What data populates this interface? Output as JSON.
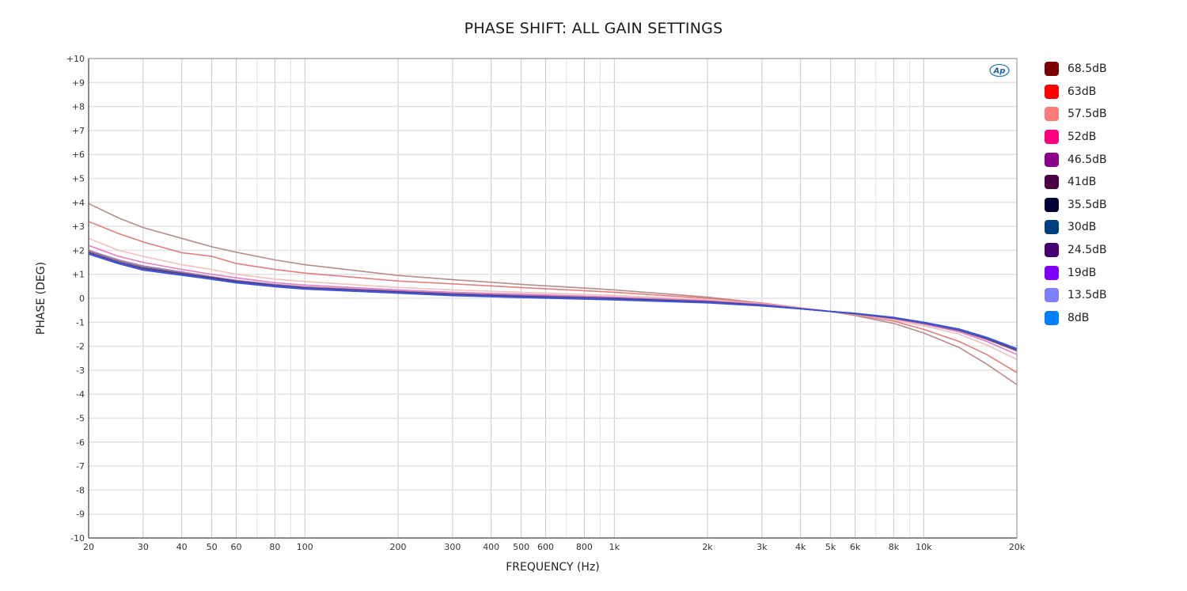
{
  "chart": {
    "title": "PHASE SHIFT: ALL GAIN SETTINGS",
    "xlabel": "FREQUENCY (Hz)",
    "ylabel": "PHASE (DEG)",
    "logo_text": "Ap"
  },
  "chart_data": {
    "type": "line",
    "title": "PHASE SHIFT: ALL GAIN SETTINGS",
    "xlabel": "FREQUENCY (Hz)",
    "ylabel": "PHASE (DEG)",
    "xscale": "log",
    "xlim": [
      20,
      20000
    ],
    "ylim": [
      -10,
      10
    ],
    "grid": true,
    "legend_position": "right",
    "x_ticks": [
      20,
      30,
      40,
      50,
      60,
      80,
      100,
      200,
      300,
      400,
      500,
      600,
      800,
      1000,
      2000,
      3000,
      4000,
      5000,
      6000,
      8000,
      10000,
      20000
    ],
    "x_tick_labels": [
      "20",
      "30",
      "40",
      "50",
      "60",
      "80",
      "100",
      "200",
      "300",
      "400",
      "500",
      "600",
      "800",
      "1k",
      "2k",
      "3k",
      "4k",
      "5k",
      "6k",
      "8k",
      "10k",
      "20k"
    ],
    "y_ticks": [
      10,
      9,
      8,
      7,
      6,
      5,
      4,
      3,
      2,
      1,
      0,
      -1,
      -2,
      -3,
      -4,
      -5,
      -6,
      -7,
      -8,
      -9,
      -10
    ],
    "y_tick_labels": [
      "+10",
      "+9",
      "+8",
      "+7",
      "+6",
      "+5",
      "+4",
      "+3",
      "+2",
      "+1",
      "0",
      "-1",
      "-2",
      "-3",
      "-4",
      "-5",
      "-6",
      "-7",
      "-8",
      "-9",
      "-10"
    ],
    "x": [
      20,
      25,
      30,
      40,
      50,
      60,
      80,
      100,
      200,
      300,
      500,
      1000,
      2000,
      3000,
      4000,
      5000,
      6000,
      8000,
      10000,
      13000,
      16000,
      20000
    ],
    "series": [
      {
        "name": "68.5dB",
        "color": "#7a0000",
        "line_color": "#b08080",
        "values": [
          3.95,
          3.35,
          2.95,
          2.5,
          2.15,
          1.92,
          1.6,
          1.4,
          0.95,
          0.78,
          0.58,
          0.35,
          0.05,
          -0.2,
          -0.4,
          -0.55,
          -0.72,
          -1.05,
          -1.45,
          -2.05,
          -2.75,
          -3.6
        ]
      },
      {
        "name": "63dB",
        "color": "#ff0000",
        "line_color": "#e07070",
        "values": [
          3.2,
          2.7,
          2.35,
          1.9,
          1.75,
          1.45,
          1.2,
          1.05,
          0.72,
          0.6,
          0.45,
          0.25,
          0.0,
          -0.2,
          -0.4,
          -0.55,
          -0.7,
          -0.95,
          -1.3,
          -1.8,
          -2.35,
          -3.1
        ]
      },
      {
        "name": "57.5dB",
        "color": "#ff7b7b",
        "line_color": "#f2b8b8",
        "values": [
          2.5,
          2.0,
          1.75,
          1.4,
          1.2,
          1.0,
          0.8,
          0.7,
          0.45,
          0.35,
          0.25,
          0.12,
          -0.05,
          -0.22,
          -0.4,
          -0.55,
          -0.68,
          -0.9,
          -1.15,
          -1.5,
          -1.95,
          -2.55
        ]
      },
      {
        "name": "52dB",
        "color": "#ff007f",
        "line_color": "#e070c0",
        "values": [
          2.2,
          1.75,
          1.5,
          1.2,
          1.0,
          0.85,
          0.65,
          0.55,
          0.35,
          0.25,
          0.17,
          0.05,
          -0.1,
          -0.25,
          -0.42,
          -0.55,
          -0.66,
          -0.85,
          -1.08,
          -1.4,
          -1.8,
          -2.35
        ]
      },
      {
        "name": "46.5dB",
        "color": "#8b008b",
        "line_color": "#a070b0",
        "values": [
          2.0,
          1.6,
          1.35,
          1.1,
          0.9,
          0.75,
          0.58,
          0.48,
          0.3,
          0.2,
          0.12,
          0.02,
          -0.13,
          -0.27,
          -0.43,
          -0.55,
          -0.65,
          -0.84,
          -1.05,
          -1.35,
          -1.72,
          -2.2
        ]
      },
      {
        "name": "41dB",
        "color": "#4b0045",
        "line_color": "#806080",
        "values": [
          1.95,
          1.55,
          1.3,
          1.05,
          0.87,
          0.72,
          0.55,
          0.45,
          0.28,
          0.18,
          0.1,
          0.0,
          -0.14,
          -0.28,
          -0.43,
          -0.55,
          -0.65,
          -0.83,
          -1.04,
          -1.33,
          -1.7,
          -2.18
        ]
      },
      {
        "name": "35.5dB",
        "color": "#000033",
        "line_color": "#303060",
        "values": [
          1.9,
          1.5,
          1.25,
          1.02,
          0.85,
          0.7,
          0.53,
          0.43,
          0.26,
          0.16,
          0.08,
          -0.02,
          -0.15,
          -0.29,
          -0.44,
          -0.55,
          -0.64,
          -0.82,
          -1.03,
          -1.32,
          -1.68,
          -2.15
        ]
      },
      {
        "name": "30dB",
        "color": "#003f7f",
        "line_color": "#305090",
        "values": [
          1.88,
          1.48,
          1.22,
          1.0,
          0.83,
          0.68,
          0.52,
          0.42,
          0.25,
          0.15,
          0.07,
          -0.03,
          -0.16,
          -0.3,
          -0.44,
          -0.55,
          -0.64,
          -0.82,
          -1.03,
          -1.31,
          -1.67,
          -2.14
        ]
      },
      {
        "name": "24.5dB",
        "color": "#44006f",
        "line_color": "#5030a0",
        "values": [
          1.87,
          1.47,
          1.21,
          0.99,
          0.82,
          0.67,
          0.51,
          0.41,
          0.24,
          0.14,
          0.06,
          -0.04,
          -0.17,
          -0.3,
          -0.44,
          -0.55,
          -0.63,
          -0.81,
          -1.02,
          -1.3,
          -1.66,
          -2.13
        ]
      },
      {
        "name": "19dB",
        "color": "#8000ff",
        "line_color": "#6040e0",
        "values": [
          1.86,
          1.46,
          1.2,
          0.98,
          0.81,
          0.66,
          0.5,
          0.4,
          0.23,
          0.13,
          0.05,
          -0.05,
          -0.18,
          -0.31,
          -0.44,
          -0.55,
          -0.63,
          -0.81,
          -1.02,
          -1.3,
          -1.65,
          -2.12
        ]
      },
      {
        "name": "13.5dB",
        "color": "#8080ff",
        "line_color": "#7070f0",
        "values": [
          1.85,
          1.45,
          1.18,
          0.97,
          0.8,
          0.65,
          0.49,
          0.39,
          0.22,
          0.12,
          0.04,
          -0.06,
          -0.18,
          -0.31,
          -0.44,
          -0.55,
          -0.63,
          -0.8,
          -1.01,
          -1.29,
          -1.64,
          -2.11
        ]
      },
      {
        "name": "8dB",
        "color": "#0080ff",
        "line_color": "#3050d0",
        "values": [
          1.84,
          1.44,
          1.17,
          0.96,
          0.79,
          0.64,
          0.48,
          0.38,
          0.21,
          0.11,
          0.03,
          -0.07,
          -0.19,
          -0.32,
          -0.44,
          -0.55,
          -0.63,
          -0.8,
          -1.0,
          -1.28,
          -1.63,
          -2.1
        ]
      }
    ]
  }
}
